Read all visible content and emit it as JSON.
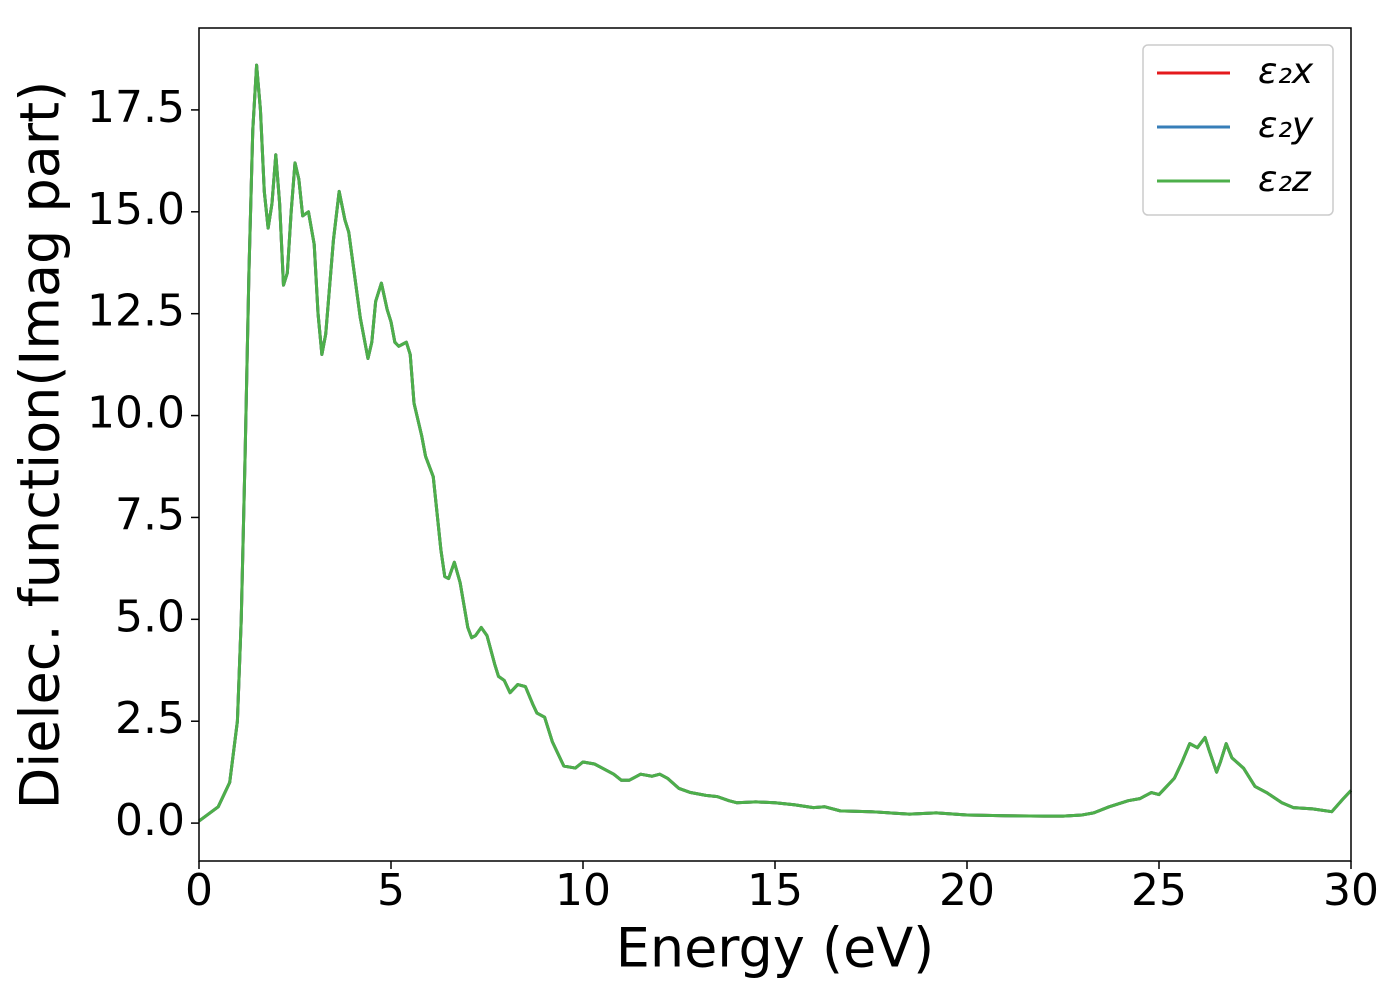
{
  "chart_data": {
    "type": "line",
    "xlabel": "Energy (eV)",
    "ylabel": "Dielec. function(Imag part)",
    "xlim": [
      0,
      30
    ],
    "ylim": [
      -0.93,
      19.51
    ],
    "xticks": [
      0,
      5,
      10,
      15,
      20,
      25,
      30
    ],
    "yticks": [
      {
        "value": 0,
        "label": "0.0"
      },
      2.5,
      {
        "value": 5,
        "label": "5.0"
      },
      7.5,
      {
        "value": 10,
        "label": "10.0"
      },
      12.5,
      {
        "value": 15,
        "label": "15.0"
      },
      17.5
    ],
    "legend": "upper right",
    "x": [
      0,
      0.5,
      0.8,
      1.0,
      1.1,
      1.2,
      1.3,
      1.4,
      1.5,
      1.6,
      1.7,
      1.8,
      1.9,
      2.0,
      2.1,
      2.2,
      2.3,
      2.4,
      2.5,
      2.6,
      2.7,
      2.85,
      3.0,
      3.1,
      3.2,
      3.3,
      3.5,
      3.65,
      3.8,
      3.9,
      4.0,
      4.2,
      4.4,
      4.5,
      4.6,
      4.75,
      4.9,
      5.0,
      5.1,
      5.2,
      5.3,
      5.4,
      5.5,
      5.6,
      5.8,
      5.9,
      6.1,
      6.2,
      6.3,
      6.4,
      6.5,
      6.65,
      6.8,
      7.0,
      7.1,
      7.2,
      7.35,
      7.5,
      7.7,
      7.8,
      7.95,
      8.1,
      8.3,
      8.5,
      8.7,
      8.8,
      9.0,
      9.2,
      9.5,
      9.8,
      10.0,
      10.3,
      10.5,
      10.8,
      11.0,
      11.2,
      11.5,
      11.8,
      12.0,
      12.2,
      12.5,
      12.8,
      13.2,
      13.5,
      13.8,
      14.0,
      14.5,
      15.0,
      15.5,
      16.0,
      16.3,
      16.7,
      17.5,
      18.5,
      19.2,
      20.0,
      21.0,
      22.0,
      22.5,
      23.0,
      23.3,
      23.7,
      24.2,
      24.5,
      24.8,
      25.0,
      25.2,
      25.4,
      25.6,
      25.8,
      26.0,
      26.2,
      26.3,
      26.5,
      26.6,
      26.75,
      26.9,
      27.2,
      27.5,
      27.8,
      28.2,
      28.5,
      29.0,
      29.5,
      29.8,
      30.0
    ],
    "series": [
      {
        "name": "ε₂x",
        "color": "#e41a1c",
        "values": [
          0.05,
          0.4,
          1.0,
          2.5,
          5,
          9,
          13.5,
          17,
          18.6,
          17.5,
          15.5,
          14.6,
          15.2,
          16.4,
          15.2,
          13.2,
          13.5,
          15.0,
          16.2,
          15.8,
          14.9,
          15.0,
          14.2,
          12.5,
          11.5,
          12.0,
          14.3,
          15.5,
          14.8,
          14.5,
          13.8,
          12.4,
          11.4,
          11.8,
          12.8,
          13.25,
          12.6,
          12.3,
          11.8,
          11.7,
          11.75,
          11.8,
          11.5,
          10.3,
          9.5,
          9.0,
          8.5,
          7.6,
          6.7,
          6.05,
          6.0,
          6.4,
          5.9,
          4.8,
          4.55,
          4.6,
          4.8,
          4.6,
          3.9,
          3.6,
          3.5,
          3.2,
          3.4,
          3.35,
          2.9,
          2.7,
          2.6,
          2.0,
          1.4,
          1.35,
          1.5,
          1.45,
          1.35,
          1.2,
          1.05,
          1.05,
          1.2,
          1.15,
          1.2,
          1.1,
          0.85,
          0.75,
          0.68,
          0.65,
          0.55,
          0.5,
          0.52,
          0.5,
          0.45,
          0.38,
          0.4,
          0.3,
          0.28,
          0.22,
          0.25,
          0.2,
          0.18,
          0.17,
          0.17,
          0.2,
          0.25,
          0.4,
          0.55,
          0.6,
          0.75,
          0.7,
          0.9,
          1.1,
          1.5,
          1.95,
          1.85,
          2.1,
          1.8,
          1.25,
          1.5,
          1.95,
          1.6,
          1.35,
          0.9,
          0.75,
          0.5,
          0.38,
          0.35,
          0.28,
          0.6,
          0.8
        ]
      },
      {
        "name": "ε₂y",
        "color": "#377eb8",
        "values": [
          0.05,
          0.4,
          1.0,
          2.5,
          5,
          9,
          13.5,
          17,
          18.6,
          17.5,
          15.5,
          14.6,
          15.2,
          16.4,
          15.2,
          13.2,
          13.5,
          15.0,
          16.2,
          15.8,
          14.9,
          15.0,
          14.2,
          12.5,
          11.5,
          12.0,
          14.3,
          15.5,
          14.8,
          14.5,
          13.8,
          12.4,
          11.4,
          11.8,
          12.8,
          13.25,
          12.6,
          12.3,
          11.8,
          11.7,
          11.75,
          11.8,
          11.5,
          10.3,
          9.5,
          9.0,
          8.5,
          7.6,
          6.7,
          6.05,
          6.0,
          6.4,
          5.9,
          4.8,
          4.55,
          4.6,
          4.8,
          4.6,
          3.9,
          3.6,
          3.5,
          3.2,
          3.4,
          3.35,
          2.9,
          2.7,
          2.6,
          2.0,
          1.4,
          1.35,
          1.5,
          1.45,
          1.35,
          1.2,
          1.05,
          1.05,
          1.2,
          1.15,
          1.2,
          1.1,
          0.85,
          0.75,
          0.68,
          0.65,
          0.55,
          0.5,
          0.52,
          0.5,
          0.45,
          0.38,
          0.4,
          0.3,
          0.28,
          0.22,
          0.25,
          0.2,
          0.18,
          0.17,
          0.17,
          0.2,
          0.25,
          0.4,
          0.55,
          0.6,
          0.75,
          0.7,
          0.9,
          1.1,
          1.5,
          1.95,
          1.85,
          2.1,
          1.8,
          1.25,
          1.5,
          1.95,
          1.6,
          1.35,
          0.9,
          0.75,
          0.5,
          0.38,
          0.35,
          0.28,
          0.6,
          0.8
        ]
      },
      {
        "name": "ε₂z",
        "color": "#4daf4a",
        "values": [
          0.05,
          0.4,
          1.0,
          2.5,
          5,
          9,
          13.5,
          17,
          18.6,
          17.5,
          15.5,
          14.6,
          15.2,
          16.4,
          15.2,
          13.2,
          13.5,
          15.0,
          16.2,
          15.8,
          14.9,
          15.0,
          14.2,
          12.5,
          11.5,
          12.0,
          14.3,
          15.5,
          14.8,
          14.5,
          13.8,
          12.4,
          11.4,
          11.8,
          12.8,
          13.25,
          12.6,
          12.3,
          11.8,
          11.7,
          11.75,
          11.8,
          11.5,
          10.3,
          9.5,
          9.0,
          8.5,
          7.6,
          6.7,
          6.05,
          6.0,
          6.4,
          5.9,
          4.8,
          4.55,
          4.6,
          4.8,
          4.6,
          3.9,
          3.6,
          3.5,
          3.2,
          3.4,
          3.35,
          2.9,
          2.7,
          2.6,
          2.0,
          1.4,
          1.35,
          1.5,
          1.45,
          1.35,
          1.2,
          1.05,
          1.05,
          1.2,
          1.15,
          1.2,
          1.1,
          0.85,
          0.75,
          0.68,
          0.65,
          0.55,
          0.5,
          0.52,
          0.5,
          0.45,
          0.38,
          0.4,
          0.3,
          0.28,
          0.22,
          0.25,
          0.2,
          0.18,
          0.17,
          0.17,
          0.2,
          0.25,
          0.4,
          0.55,
          0.6,
          0.75,
          0.7,
          0.9,
          1.1,
          1.5,
          1.95,
          1.85,
          2.1,
          1.8,
          1.25,
          1.5,
          1.95,
          1.6,
          1.35,
          0.9,
          0.75,
          0.5,
          0.38,
          0.35,
          0.28,
          0.6,
          0.8
        ]
      }
    ]
  }
}
